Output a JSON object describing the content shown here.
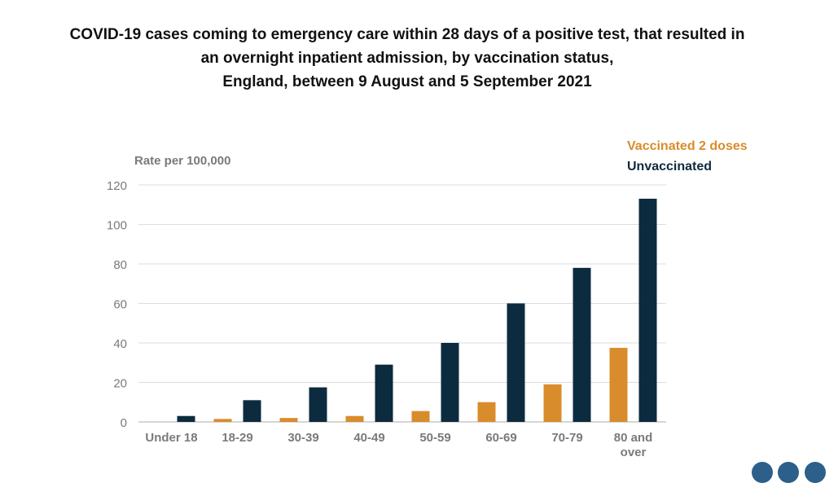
{
  "title_lines": [
    "COVID-19 cases coming to emergency care within 28 days of a positive test, that resulted in",
    "an overnight inpatient admission, by vaccination status,",
    "England, between 9 August and 5 September 2021"
  ],
  "colors": {
    "vaccinated": "#d98c2b",
    "unvaccinated": "#0d2b3e",
    "grid": "#dcdcdc",
    "axis_text": "#7a7a7a"
  },
  "chart_data": {
    "type": "bar",
    "title": "COVID-19 cases coming to emergency care within 28 days of a positive test, that resulted in an overnight inpatient admission, by vaccination status, England, between 9 August and 5 September 2021",
    "ylabel": "Rate per 100,000",
    "xlabel": "",
    "ylim": [
      0,
      120
    ],
    "yticks": [
      "0",
      "20",
      "40",
      "60",
      "80",
      "100",
      "120"
    ],
    "categories": [
      "Under 18",
      "18-29",
      "30-39",
      "40-49",
      "50-59",
      "60-69",
      "70-79",
      "80 and over"
    ],
    "category_lines": [
      [
        "Under 18"
      ],
      [
        "18-29"
      ],
      [
        "30-39"
      ],
      [
        "40-49"
      ],
      [
        "50-59"
      ],
      [
        "60-69"
      ],
      [
        "70-79"
      ],
      [
        "80 and",
        "over"
      ]
    ],
    "series": [
      {
        "name": "Vaccinated 2 doses",
        "values": [
          0,
          1.5,
          2,
          3,
          5.5,
          10,
          19,
          37.5
        ]
      },
      {
        "name": "Unvaccinated",
        "values": [
          3,
          11,
          17.5,
          29,
          40,
          60,
          78,
          113
        ]
      }
    ],
    "grid": true,
    "legend": "top-right"
  }
}
